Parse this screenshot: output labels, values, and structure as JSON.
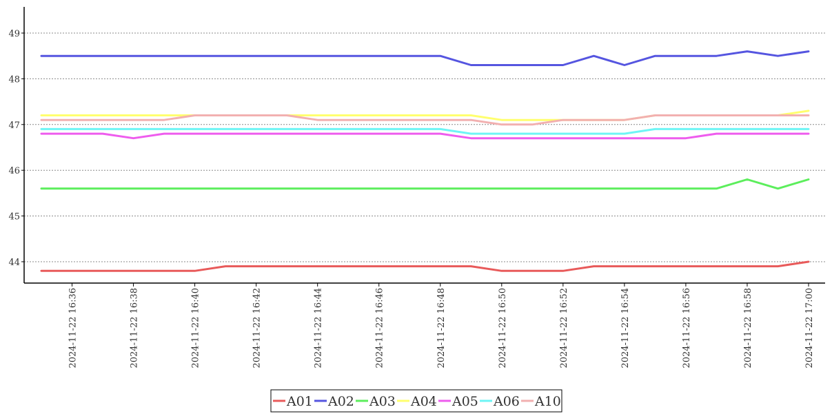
{
  "chart_data": {
    "type": "line",
    "title": "",
    "xlabel": "",
    "ylabel": "",
    "ylim": [
      43.5,
      49.5
    ],
    "y_ticks": [
      44,
      45,
      46,
      47,
      48,
      49
    ],
    "grid": "horizontal-dotted",
    "legend_position": "bottom-center",
    "x": [
      "16:35",
      "16:36",
      "16:37",
      "16:38",
      "16:39",
      "16:40",
      "16:41",
      "16:42",
      "16:43",
      "16:44",
      "16:45",
      "16:46",
      "16:47",
      "16:48",
      "16:49",
      "16:50",
      "16:51",
      "16:52",
      "16:53",
      "16:54",
      "16:55",
      "16:56",
      "16:57",
      "16:58",
      "16:59",
      "17:00"
    ],
    "x_tick_labels": [
      {
        "x": "16:36",
        "label": "2024-11-22 16:36"
      },
      {
        "x": "16:38",
        "label": "2024-11-22 16:38"
      },
      {
        "x": "16:40",
        "label": "2024-11-22 16:40"
      },
      {
        "x": "16:42",
        "label": "2024-11-22 16:42"
      },
      {
        "x": "16:44",
        "label": "2024-11-22 16:44"
      },
      {
        "x": "16:46",
        "label": "2024-11-22 16:46"
      },
      {
        "x": "16:48",
        "label": "2024-11-22 16:48"
      },
      {
        "x": "16:50",
        "label": "2024-11-22 16:50"
      },
      {
        "x": "16:52",
        "label": "2024-11-22 16:52"
      },
      {
        "x": "16:54",
        "label": "2024-11-22 16:54"
      },
      {
        "x": "16:56",
        "label": "2024-11-22 16:56"
      },
      {
        "x": "16:58",
        "label": "2024-11-22 16:58"
      },
      {
        "x": "17:00",
        "label": "2024-11-22 17:00"
      }
    ],
    "series": [
      {
        "name": "A01",
        "color": "#e85a5a",
        "values": [
          43.8,
          43.8,
          43.8,
          43.8,
          43.8,
          43.8,
          43.9,
          43.9,
          43.9,
          43.9,
          43.9,
          43.9,
          43.9,
          43.9,
          43.9,
          43.8,
          43.8,
          43.8,
          43.9,
          43.9,
          43.9,
          43.9,
          43.9,
          43.9,
          43.9,
          44.0
        ]
      },
      {
        "name": "A02",
        "color": "#5555e0",
        "values": [
          48.5,
          48.5,
          48.5,
          48.5,
          48.5,
          48.5,
          48.5,
          48.5,
          48.5,
          48.5,
          48.5,
          48.5,
          48.5,
          48.5,
          48.3,
          48.3,
          48.3,
          48.3,
          48.5,
          48.3,
          48.5,
          48.5,
          48.5,
          48.6,
          48.5,
          48.6
        ]
      },
      {
        "name": "A03",
        "color": "#5cee5c",
        "values": [
          45.6,
          45.6,
          45.6,
          45.6,
          45.6,
          45.6,
          45.6,
          45.6,
          45.6,
          45.6,
          45.6,
          45.6,
          45.6,
          45.6,
          45.6,
          45.6,
          45.6,
          45.6,
          45.6,
          45.6,
          45.6,
          45.6,
          45.6,
          45.8,
          45.6,
          45.8
        ]
      },
      {
        "name": "A04",
        "color": "#ffff6e",
        "values": [
          47.2,
          47.2,
          47.2,
          47.2,
          47.2,
          47.2,
          47.2,
          47.2,
          47.2,
          47.2,
          47.2,
          47.2,
          47.2,
          47.2,
          47.2,
          47.1,
          47.1,
          47.1,
          47.1,
          47.1,
          47.2,
          47.2,
          47.2,
          47.2,
          47.2,
          47.3
        ]
      },
      {
        "name": "A05",
        "color": "#ee5cee",
        "values": [
          46.8,
          46.8,
          46.8,
          46.7,
          46.8,
          46.8,
          46.8,
          46.8,
          46.8,
          46.8,
          46.8,
          46.8,
          46.8,
          46.8,
          46.7,
          46.7,
          46.7,
          46.7,
          46.7,
          46.7,
          46.7,
          46.7,
          46.8,
          46.8,
          46.8,
          46.8
        ]
      },
      {
        "name": "A06",
        "color": "#6ef5f5",
        "values": [
          46.9,
          46.9,
          46.9,
          46.9,
          46.9,
          46.9,
          46.9,
          46.9,
          46.9,
          46.9,
          46.9,
          46.9,
          46.9,
          46.9,
          46.8,
          46.8,
          46.8,
          46.8,
          46.8,
          46.8,
          46.9,
          46.9,
          46.9,
          46.9,
          46.9,
          46.9
        ]
      },
      {
        "name": "A10",
        "color": "#f2b0b0",
        "values": [
          47.1,
          47.1,
          47.1,
          47.1,
          47.1,
          47.2,
          47.2,
          47.2,
          47.2,
          47.1,
          47.1,
          47.1,
          47.1,
          47.1,
          47.1,
          47.0,
          47.0,
          47.1,
          47.1,
          47.1,
          47.2,
          47.2,
          47.2,
          47.2,
          47.2,
          47.2
        ]
      }
    ]
  }
}
